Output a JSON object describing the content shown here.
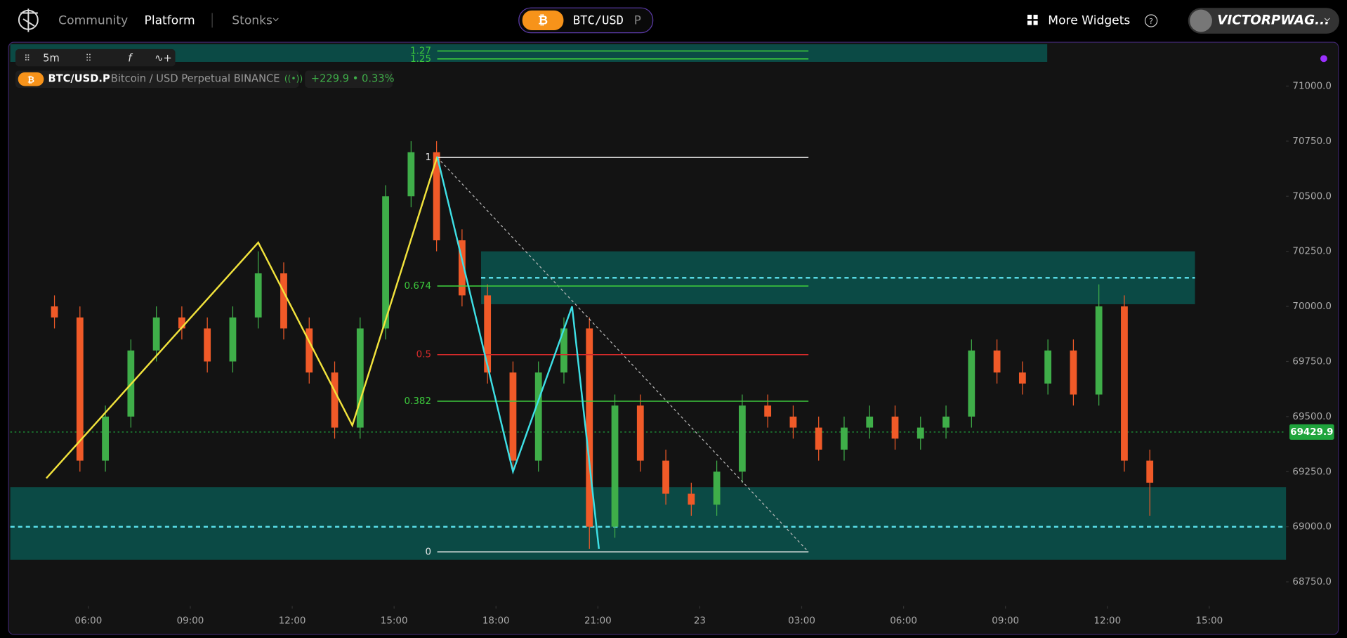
{
  "nav": {
    "community": "Community",
    "platform": "Platform",
    "stonks": "Stonks",
    "symbol": "BTC/USD",
    "symbol_suffix": "P",
    "widgets": "More Widgets",
    "user": "VICTORPWAG..."
  },
  "toolbar": {
    "interval": "5m"
  },
  "legend": {
    "symbol": "BTC/USD.P",
    "description": "Bitcoin / USD Perpetual",
    "exchange": "BINANCE",
    "change": "+229.9 • 0.33%"
  },
  "chart_data": {
    "type": "candlestick",
    "x": [
      5,
      5.75,
      6.5,
      7.25,
      8,
      8.75,
      9.5,
      10.25,
      11,
      11.75,
      12.5,
      13.25,
      14,
      14.75,
      15.5,
      16.25,
      17,
      17.75,
      18.5,
      19.25,
      20,
      20.75,
      21.5,
      22.25,
      23,
      23.75,
      24.5,
      25.25,
      26,
      26.75,
      27.5,
      28.25,
      29,
      29.75,
      30.5,
      31.25,
      32,
      32.75,
      33.5,
      34.25,
      35,
      35.75,
      36.5,
      37.25
    ],
    "open": [
      70000,
      69950,
      69300,
      69500,
      69800,
      69950,
      69900,
      69750,
      69950,
      70150,
      69900,
      69700,
      69450,
      69900,
      70500,
      70700,
      70300,
      70050,
      69700,
      69300,
      69700,
      69900,
      69000,
      69550,
      69300,
      69150,
      69100,
      69250,
      69550,
      69500,
      69450,
      69350,
      69450,
      69500,
      69400,
      69450,
      69500,
      69800,
      69700,
      69650,
      69800,
      69600,
      70000,
      69300
    ],
    "high": [
      70050,
      70000,
      69550,
      69850,
      70000,
      70000,
      69950,
      70000,
      70250,
      70200,
      69950,
      69750,
      69950,
      70550,
      70750,
      70750,
      70350,
      70100,
      69750,
      69750,
      69950,
      69950,
      69600,
      69600,
      69350,
      69200,
      69300,
      69600,
      69600,
      69550,
      69500,
      69500,
      69550,
      69550,
      69500,
      69550,
      69850,
      69850,
      69750,
      69850,
      69850,
      70100,
      70050,
      69350
    ],
    "low": [
      69900,
      69250,
      69250,
      69450,
      69750,
      69850,
      69700,
      69700,
      69900,
      69850,
      69650,
      69400,
      69400,
      69850,
      70450,
      70250,
      70000,
      69650,
      69250,
      69250,
      69650,
      68900,
      68950,
      69250,
      69100,
      69050,
      69050,
      69200,
      69450,
      69400,
      69300,
      69300,
      69400,
      69350,
      69350,
      69400,
      69450,
      69650,
      69600,
      69600,
      69550,
      69550,
      69250,
      69050
    ],
    "close": [
      69950,
      69300,
      69500,
      69800,
      69950,
      69900,
      69750,
      69950,
      70150,
      69900,
      69700,
      69450,
      69900,
      70500,
      70700,
      70300,
      70050,
      69700,
      69300,
      69700,
      69900,
      69000,
      69550,
      69300,
      69150,
      69100,
      69250,
      69550,
      69500,
      69450,
      69350,
      69450,
      69500,
      69400,
      69450,
      69500,
      69800,
      69700,
      69650,
      69800,
      69600,
      70000,
      69300,
      69200
    ],
    "up_color": "#3fae49",
    "down_color": "#f05a28",
    "xlim": [
      3.7,
      41.26
    ],
    "ylim": [
      68640,
      71195
    ],
    "xticks": [
      {
        "value": 6,
        "label": "06:00"
      },
      {
        "value": 9,
        "label": "09:00"
      },
      {
        "value": 12,
        "label": "12:00"
      },
      {
        "value": 15,
        "label": "15:00"
      },
      {
        "value": 18,
        "label": "18:00"
      },
      {
        "value": 21,
        "label": "21:00"
      },
      {
        "value": 24,
        "label": "23"
      },
      {
        "value": 27,
        "label": "03:00"
      },
      {
        "value": 30,
        "label": "06:00"
      },
      {
        "value": 33,
        "label": "09:00"
      },
      {
        "value": 36,
        "label": "12:00"
      },
      {
        "value": 39,
        "label": "15:00"
      }
    ],
    "yticks": [
      {
        "value": 71000,
        "label": "71000.0"
      },
      {
        "value": 70750,
        "label": "70750.0"
      },
      {
        "value": 70500,
        "label": "70500.0"
      },
      {
        "value": 70250,
        "label": "70250.0"
      },
      {
        "value": 70000,
        "label": "70000.0"
      },
      {
        "value": 69750,
        "label": "69750.0"
      },
      {
        "value": 69500,
        "label": "69500.0"
      },
      {
        "value": 69250,
        "label": "69250.0"
      },
      {
        "value": 69000,
        "label": "69000.0"
      },
      {
        "value": 68750,
        "label": "68750.0"
      }
    ],
    "last_price": 69429.9,
    "last_price_color": "#1fa43c",
    "zones": [
      {
        "x": [
          3.7,
          34.23
        ],
        "top": 71190,
        "bottom": 71110,
        "color": "#0b4a45"
      },
      {
        "x": [
          17.56,
          38.58
        ],
        "top": 70250,
        "bottom": 70010,
        "mid": 70130,
        "color": "#0b4a45"
      },
      {
        "x": [
          3.7,
          41.26
        ],
        "top": 69180,
        "bottom": 68850,
        "mid": 69000,
        "color": "#0b4a45"
      }
    ],
    "zigzags": [
      {
        "color": "#f2e33c",
        "x": [
          4.76,
          11,
          13.77,
          16.27
        ],
        "y": [
          69220,
          70290,
          69460,
          70680
        ]
      },
      {
        "color": "#3ee0e6",
        "x": [
          16.27,
          18.5,
          20.24,
          21.03
        ],
        "y": [
          70680,
          69250,
          70000,
          68900
        ]
      }
    ],
    "fib": {
      "x": [
        16.27,
        27.2
      ],
      "price_0": 68886,
      "price_1": 70676,
      "levels": [
        1.27,
        1.25,
        1,
        0.674,
        0.5,
        0.382,
        0
      ],
      "colors": [
        "#3cc83c",
        "#3cc83c",
        "#e8e8e8",
        "#3cc83c",
        "#d42a2a",
        "#3cc83c",
        "#e8e8e8"
      ]
    }
  }
}
